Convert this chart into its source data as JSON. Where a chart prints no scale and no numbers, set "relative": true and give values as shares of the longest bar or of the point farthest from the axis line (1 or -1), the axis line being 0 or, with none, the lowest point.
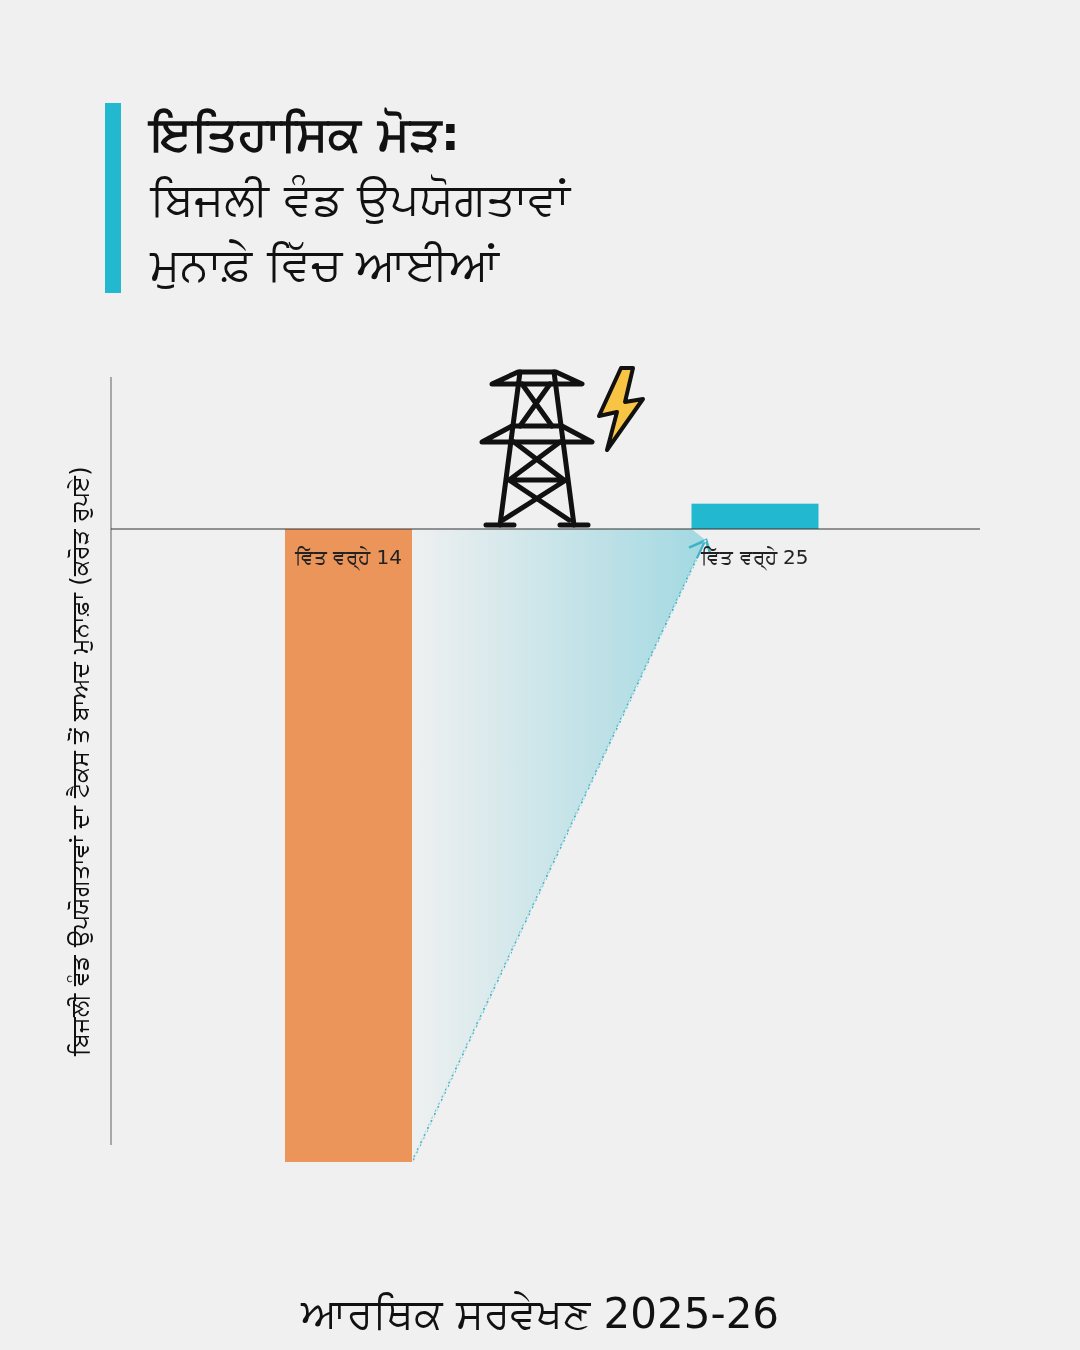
{
  "chart_data": {
    "type": "bar",
    "title": "ਇਤਿਹਾਸਿਕ ਮੋੜ:",
    "subtitle": "ਬਿਜਲੀ ਵੰਡ ਉਪਯੋਗਤਾਵਾਂ ਮੁਨਾਫ਼ੇ ਵਿੱਚ ਆਈਆਂ",
    "ylabel": "ਬਿਜਲੀ ਵੰਡ ਉਪਯੋਗਤਾਵਾਂ ਦਾ ਟੈਕਸ ਤੋਂ ਬਾਅਦ ਮੁਨਾਫ਼ਾ (ਕਰੋੜ ਰੁਪਏ)",
    "categories": [
      "ਵਿੱਤ ਵਰ੍ਹੇ 14",
      "ਵਿੱਤ ਵਰ੍ਹੇ 25"
    ],
    "values": [
      -1,
      0.04
    ],
    "colors": [
      "#eb955a",
      "#22b8cf"
    ],
    "relative": true,
    "annotations": [
      "ਆਰਥਿਕ ਸਰਵੇਖਣ 2025-26"
    ]
  }
}
